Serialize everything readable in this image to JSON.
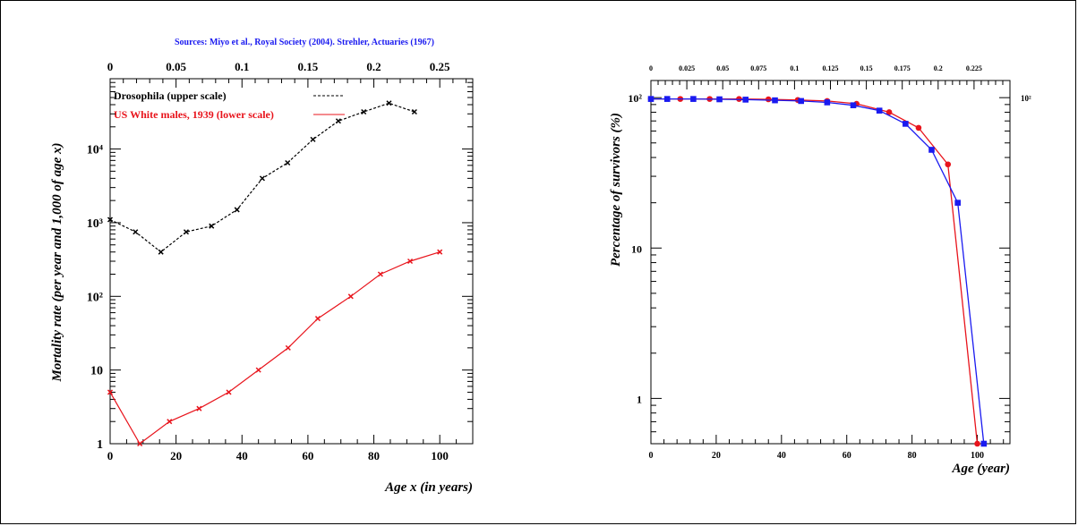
{
  "colors": {
    "black": "#000000",
    "red": "#e8141c",
    "blue": "#1a1af0"
  },
  "chart_data": [
    {
      "type": "line",
      "title": "Sources: Miyo et al., Royal Society (2004). Strehler, Actuaries (1967)",
      "xlabel": "Age x (in years)",
      "ylabel": "Mortality rate (per year and 1,000 of age x)",
      "yscale": "log",
      "ylim": [
        1,
        90000
      ],
      "xlim_lower": [
        0,
        110
      ],
      "xlim_upper": [
        0,
        0.275
      ],
      "x_ticks_lower": [
        "0",
        "20",
        "40",
        "60",
        "80",
        "100"
      ],
      "x_ticks_upper": [
        "0",
        "0.05",
        "0.1",
        "0.15",
        "0.2",
        "0.25"
      ],
      "y_ticks": [
        "1",
        "10",
        "10²",
        "10³",
        "10⁴"
      ],
      "grid": false,
      "legend_position": "top-left",
      "series": [
        {
          "name": "Drosophila (upper scale)",
          "axis": "upper",
          "style": "dashed",
          "color": "#000000",
          "x": [
            0,
            0.0192,
            0.0385,
            0.0577,
            0.0769,
            0.0962,
            0.1154,
            0.1346,
            0.1538,
            0.1731,
            0.1923,
            0.2115,
            0.2308
          ],
          "y": [
            1100,
            750,
            400,
            750,
            900,
            1500,
            4000,
            6500,
            13500,
            24000,
            32000,
            42000,
            32000
          ]
        },
        {
          "name": "US White males, 1939 (lower scale)",
          "axis": "lower",
          "style": "solid",
          "color": "#e8141c",
          "x": [
            0,
            9,
            18,
            27,
            36,
            45,
            54,
            63,
            73,
            82,
            91,
            100
          ],
          "y": [
            5,
            1,
            2,
            3,
            5,
            10,
            20,
            50,
            100,
            200,
            300,
            400
          ]
        }
      ]
    },
    {
      "type": "line",
      "xlabel": "Age (year)",
      "ylabel": "Percentage of survivors (%)",
      "yscale": "log",
      "ylim": [
        0.5,
        130
      ],
      "xlim_lower": [
        0,
        110
      ],
      "xlim_upper": [
        0,
        0.25
      ],
      "x_ticks_lower": [
        "0",
        "20",
        "40",
        "60",
        "80",
        "100"
      ],
      "x_ticks_upper": [
        "0",
        "0.025",
        "0.05",
        "0.075",
        "0.1",
        "0.125",
        "0.15",
        "0.175",
        "0.2",
        "0.225"
      ],
      "y_ticks": [
        "1",
        "10",
        "10²"
      ],
      "y_ticks_right": [
        "10²"
      ],
      "grid": false,
      "series": [
        {
          "color": "#e8141c",
          "marker": "circle",
          "x": [
            0,
            9,
            18,
            27,
            36,
            45,
            54,
            63,
            73,
            82,
            91,
            100
          ],
          "y": [
            98,
            98,
            98,
            98,
            97.5,
            96.5,
            95,
            91,
            80,
            63,
            36,
            0.5
          ]
        },
        {
          "color": "#1a1af0",
          "marker": "square",
          "x": [
            0,
            5,
            13,
            21,
            29,
            38,
            46,
            54,
            62,
            70,
            78,
            86,
            94,
            102
          ],
          "y": [
            98,
            98,
            98,
            97.5,
            97,
            96,
            95,
            93,
            89,
            82,
            67,
            45,
            20,
            0.5
          ]
        }
      ]
    }
  ]
}
